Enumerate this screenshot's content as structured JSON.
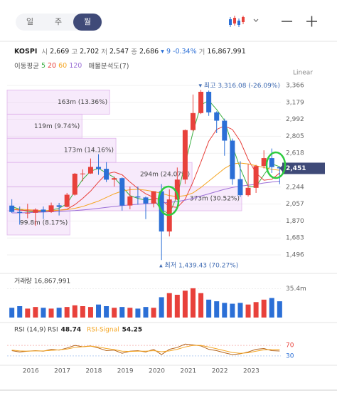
{
  "tabs": [
    "일",
    "주",
    "월"
  ],
  "quote": {
    "symbol": "KOSPI",
    "fields": [
      {
        "label": "시",
        "value": "2,669"
      },
      {
        "label": "고",
        "value": "2,702"
      },
      {
        "label": "저",
        "value": "2,547"
      },
      {
        "label": "종",
        "value": "2,686"
      }
    ],
    "change": "▾ 9",
    "change_pct": "-0.34%",
    "volume_label": "거",
    "volume": "16,867,991"
  },
  "indicator_label": "이동평균",
  "chart_data": [
    {
      "type": "candlestick",
      "scale_label": "Linear",
      "x": [
        2015.4,
        2015.65,
        2015.9,
        2016.15,
        2016.4,
        2016.65,
        2016.9,
        2017.15,
        2017.4,
        2017.65,
        2017.9,
        2018.15,
        2018.4,
        2018.65,
        2018.9,
        2019.15,
        2019.4,
        2019.65,
        2019.9,
        2020.15,
        2020.4,
        2020.65,
        2020.9,
        2021.15,
        2021.4,
        2021.65,
        2021.9,
        2022.15,
        2022.4,
        2022.65,
        2022.9,
        2023.15,
        2023.4,
        2023.65,
        2023.9
      ],
      "open": [
        2040,
        1970,
        1960,
        1961,
        1996,
        1970,
        2043,
        2026,
        2160,
        2392,
        2394,
        2467,
        2446,
        2326,
        2343,
        2041,
        2141,
        2130,
        2063,
        2198,
        1754,
        2108,
        2327,
        2873,
        3061,
        3296,
        3069,
        2977,
        2757,
        2332,
        2155,
        2236,
        2476,
        2564,
        2465
      ],
      "high": [
        2110,
        2030,
        2060,
        2010,
        2030,
        2073,
        2070,
        2180,
        2400,
        2440,
        2560,
        2607,
        2520,
        2360,
        2350,
        2250,
        2250,
        2140,
        2200,
        2277,
        2220,
        2460,
        2880,
        3266,
        3316.08,
        3310,
        3080,
        3000,
        2780,
        2530,
        2500,
        2490,
        2650,
        2670,
        2470
      ],
      "low": [
        1960,
        1830,
        1900,
        1817,
        1892,
        1960,
        1931,
        2020,
        2150,
        2310,
        2390,
        2380,
        2300,
        2250,
        1985,
        2000,
        2050,
        1891,
        2020,
        1439.43,
        1700,
        2100,
        2280,
        2860,
        3050,
        3030,
        2840,
        2590,
        2270,
        2134,
        2140,
        2180,
        2450,
        2400,
        2277
      ],
      "close": [
        1970,
        1960,
        1961,
        1996,
        1970,
        2043,
        2026,
        2160,
        2392,
        2394,
        2467,
        2446,
        2326,
        2343,
        2041,
        2141,
        2130,
        2063,
        2198,
        1754,
        2108,
        2327,
        2873,
        3061,
        3296,
        3069,
        2977,
        2757,
        2332,
        2155,
        2236,
        2476,
        2564,
        2465,
        2451
      ],
      "up_color": "#e8413b",
      "down_color": "#2b6fd6",
      "xlim": [
        2015.25,
        2024.05
      ],
      "xticks": [
        2016,
        2017,
        2018,
        2019,
        2020,
        2021,
        2022,
        2023
      ],
      "ylim": [
        1496,
        3366
      ],
      "yticks": [
        {
          "value": 3366,
          "label": "3,366"
        },
        {
          "value": 3179,
          "label": "3,179"
        },
        {
          "value": 2992,
          "label": "2,992"
        },
        {
          "value": 2805,
          "label": "2,805"
        },
        {
          "value": 2618,
          "label": "2,618"
        },
        {
          "value": 2244,
          "label": "2,244"
        },
        {
          "value": 2057,
          "label": "2,057"
        },
        {
          "value": 1870,
          "label": "1,870"
        },
        {
          "value": 1683,
          "label": "1,683"
        },
        {
          "value": 1496,
          "label": "1,496"
        }
      ],
      "moving_averages": [
        {
          "name": 5,
          "color": "#3cb043",
          "values": [
            2030,
            2000,
            1975,
            1970,
            1980,
            1990,
            2010,
            2060,
            2200,
            2330,
            2420,
            2450,
            2400,
            2350,
            2250,
            2150,
            2120,
            2100,
            2110,
            1990,
            1950,
            2150,
            2500,
            2850,
            3150,
            3200,
            3100,
            2980,
            2700,
            2450,
            2250,
            2250,
            2380,
            2500,
            2470
          ]
        },
        {
          "name": 20,
          "color": "#e8413b",
          "values": [
            2000,
            1990,
            1985,
            1980,
            1975,
            1980,
            1990,
            2000,
            2050,
            2120,
            2200,
            2300,
            2390,
            2410,
            2380,
            2300,
            2230,
            2170,
            2130,
            2100,
            2030,
            2020,
            2110,
            2300,
            2520,
            2750,
            2880,
            2920,
            2880,
            2750,
            2550,
            2400,
            2320,
            2330,
            2400
          ]
        },
        {
          "name": 60,
          "color": "#f5a623",
          "values": [
            2000,
            2000,
            1995,
            1990,
            1985,
            1985,
            1990,
            1995,
            2010,
            2030,
            2060,
            2090,
            2130,
            2170,
            2200,
            2215,
            2220,
            2210,
            2195,
            2175,
            2150,
            2140,
            2150,
            2180,
            2240,
            2310,
            2380,
            2450,
            2500,
            2510,
            2500,
            2480,
            2460,
            2440,
            2430
          ]
        },
        {
          "name": 120,
          "color": "#9b6fd6",
          "values": [
            1960,
            1960,
            1962,
            1965,
            1968,
            1972,
            1975,
            1980,
            1985,
            1992,
            2000,
            2010,
            2020,
            2030,
            2040,
            2048,
            2055,
            2060,
            2065,
            2070,
            2075,
            2085,
            2100,
            2120,
            2145,
            2170,
            2195,
            2220,
            2240,
            2255,
            2265,
            2275,
            2290,
            2300,
            2310
          ]
        }
      ],
      "volume_profile": {
        "name": "매물분석도(7)",
        "bins": [
          3316,
          3049,
          2783,
          2516,
          2249,
          1983,
          1716
        ],
        "values": [
          163,
          119,
          173,
          294,
          373,
          99.8
        ],
        "value_labels": [
          "163m (13.36%)",
          "119m (9.74%)",
          "173m (14.16%)",
          "294m (24.07%)",
          "373m (30.52%)",
          "99.8m (8.17%)"
        ]
      },
      "annotations": [
        {
          "text": "▾ 최고 3,316.08 (-26.09%)",
          "x": 2021.4,
          "value": 3316.08,
          "position": "above"
        },
        {
          "text": "▴ 최저 1,439.43 (70.27%)",
          "x": 2020.15,
          "value": 1439.43,
          "position": "below"
        }
      ],
      "current_price": {
        "value": 2451,
        "label": "2,451"
      }
    },
    {
      "type": "bar",
      "title": "거래량 16,867,991",
      "values": [
        12,
        14,
        11,
        13,
        12,
        11,
        12,
        13,
        15,
        14,
        13,
        16,
        14,
        12,
        13,
        12,
        11,
        13,
        12,
        25,
        30,
        28,
        33,
        36,
        30,
        22,
        20,
        18,
        17,
        18,
        16,
        19,
        22,
        24,
        20
      ],
      "ylim": [
        0,
        42
      ],
      "yticks": [
        {
          "value": 35.4,
          "label": "35.4m"
        }
      ]
    },
    {
      "type": "line",
      "title": "RSI (14,9)",
      "series": [
        {
          "name": "RSI",
          "value_label": "48.74",
          "color": "#b5651d",
          "values": [
            50,
            45,
            48,
            50,
            48,
            55,
            52,
            60,
            70,
            65,
            68,
            60,
            50,
            52,
            40,
            48,
            50,
            45,
            55,
            35,
            55,
            62,
            75,
            72,
            68,
            55,
            50,
            42,
            35,
            38,
            45,
            55,
            58,
            50,
            48.74
          ]
        },
        {
          "name": "RSI-Signal",
          "value_label": "54.25",
          "color": "#f5a623",
          "values": [
            52,
            49,
            48,
            49,
            49,
            51,
            53,
            56,
            62,
            65,
            67,
            64,
            58,
            54,
            48,
            47,
            48,
            48,
            50,
            46,
            49,
            55,
            64,
            70,
            70,
            64,
            57,
            50,
            43,
            40,
            42,
            48,
            53,
            54,
            54.25
          ]
        }
      ],
      "ylim": [
        0,
        100
      ],
      "yticks": [
        70,
        30
      ],
      "ytick_colors": [
        "#e8413b",
        "#2b6fd6"
      ]
    }
  ]
}
